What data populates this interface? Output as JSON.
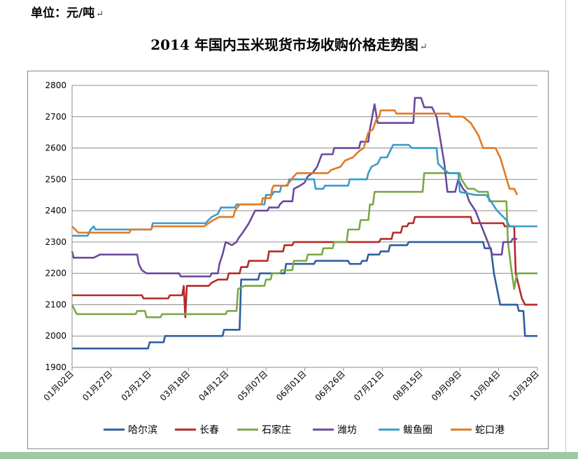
{
  "header": {
    "unit": "单位：元/吨",
    "mark": "↵"
  },
  "chart_data": {
    "type": "line",
    "title": "2014 年国内玉米现货市场收购价格走势图",
    "title_mark": "↵",
    "ylim": [
      1900,
      2800
    ],
    "yticks": [
      1900,
      2000,
      2100,
      2200,
      2300,
      2400,
      2500,
      2600,
      2700,
      2800
    ],
    "xlim": [
      0,
      300
    ],
    "xticks": [
      {
        "label": "01月02日",
        "x": 0
      },
      {
        "label": "01月27日",
        "x": 25
      },
      {
        "label": "02月21日",
        "x": 50
      },
      {
        "label": "03月18日",
        "x": 75
      },
      {
        "label": "04月12日",
        "x": 100
      },
      {
        "label": "05月07日",
        "x": 125
      },
      {
        "label": "06月01日",
        "x": 150
      },
      {
        "label": "06月26日",
        "x": 175
      },
      {
        "label": "07月21日",
        "x": 200
      },
      {
        "label": "08月15日",
        "x": 225
      },
      {
        "label": "09月09日",
        "x": 250
      },
      {
        "label": "10月04日",
        "x": 275
      },
      {
        "label": "10月29日",
        "x": 300
      }
    ],
    "grid": true,
    "legend_position": "bottom",
    "series": [
      {
        "name": "哈尔滨",
        "color": "#2e5f9e",
        "points": [
          [
            0,
            1960
          ],
          [
            49,
            1960
          ],
          [
            50,
            1980
          ],
          [
            59,
            1980
          ],
          [
            60,
            2000
          ],
          [
            97,
            2000
          ],
          [
            98,
            2020
          ],
          [
            108,
            2020
          ],
          [
            109,
            2180
          ],
          [
            120,
            2180
          ],
          [
            121,
            2200
          ],
          [
            137,
            2200
          ],
          [
            138,
            2230
          ],
          [
            156,
            2230
          ],
          [
            157,
            2240
          ],
          [
            178,
            2240
          ],
          [
            179,
            2230
          ],
          [
            186,
            2230
          ],
          [
            187,
            2240
          ],
          [
            190,
            2240
          ],
          [
            191,
            2260
          ],
          [
            198,
            2260
          ],
          [
            199,
            2270
          ],
          [
            204,
            2270
          ],
          [
            205,
            2290
          ],
          [
            216,
            2290
          ],
          [
            217,
            2300
          ],
          [
            265,
            2300
          ],
          [
            266,
            2280
          ],
          [
            270,
            2280
          ],
          [
            272,
            2200
          ],
          [
            276,
            2100
          ],
          [
            287,
            2100
          ],
          [
            288,
            2080
          ],
          [
            291,
            2080
          ],
          [
            292,
            2000
          ],
          [
            300,
            2000
          ]
        ]
      },
      {
        "name": "长春",
        "color": "#b52a26",
        "points": [
          [
            0,
            2130
          ],
          [
            45,
            2130
          ],
          [
            46,
            2120
          ],
          [
            62,
            2120
          ],
          [
            63,
            2130
          ],
          [
            71,
            2130
          ],
          [
            72,
            2160
          ],
          [
            73,
            2060
          ],
          [
            74,
            2160
          ],
          [
            88,
            2160
          ],
          [
            90,
            2170
          ],
          [
            94,
            2180
          ],
          [
            100,
            2180
          ],
          [
            101,
            2200
          ],
          [
            108,
            2200
          ],
          [
            109,
            2220
          ],
          [
            113,
            2220
          ],
          [
            114,
            2240
          ],
          [
            126,
            2240
          ],
          [
            127,
            2270
          ],
          [
            136,
            2270
          ],
          [
            137,
            2290
          ],
          [
            142,
            2290
          ],
          [
            143,
            2300
          ],
          [
            198,
            2300
          ],
          [
            199,
            2310
          ],
          [
            206,
            2310
          ],
          [
            207,
            2330
          ],
          [
            212,
            2330
          ],
          [
            213,
            2350
          ],
          [
            216,
            2350
          ],
          [
            217,
            2360
          ],
          [
            220,
            2360
          ],
          [
            221,
            2380
          ],
          [
            257,
            2380
          ],
          [
            258,
            2360
          ],
          [
            278,
            2360
          ],
          [
            279,
            2350
          ],
          [
            285,
            2350
          ],
          [
            286,
            2200
          ],
          [
            288,
            2160
          ],
          [
            290,
            2120
          ],
          [
            292,
            2100
          ],
          [
            300,
            2100
          ]
        ]
      },
      {
        "name": "石家庄",
        "color": "#7aa84a",
        "points": [
          [
            0,
            2100
          ],
          [
            2,
            2080
          ],
          [
            3,
            2070
          ],
          [
            41,
            2070
          ],
          [
            42,
            2080
          ],
          [
            47,
            2080
          ],
          [
            48,
            2060
          ],
          [
            57,
            2060
          ],
          [
            58,
            2070
          ],
          [
            99,
            2070
          ],
          [
            100,
            2080
          ],
          [
            106,
            2080
          ],
          [
            107,
            2150
          ],
          [
            111,
            2160
          ],
          [
            124,
            2160
          ],
          [
            125,
            2180
          ],
          [
            128,
            2180
          ],
          [
            129,
            2200
          ],
          [
            134,
            2200
          ],
          [
            135,
            2210
          ],
          [
            142,
            2210
          ],
          [
            143,
            2240
          ],
          [
            151,
            2240
          ],
          [
            152,
            2260
          ],
          [
            161,
            2260
          ],
          [
            162,
            2280
          ],
          [
            168,
            2280
          ],
          [
            169,
            2300
          ],
          [
            177,
            2300
          ],
          [
            178,
            2340
          ],
          [
            185,
            2340
          ],
          [
            186,
            2370
          ],
          [
            191,
            2370
          ],
          [
            192,
            2420
          ],
          [
            194,
            2420
          ],
          [
            195,
            2460
          ],
          [
            226,
            2460
          ],
          [
            227,
            2520
          ],
          [
            250,
            2520
          ],
          [
            251,
            2500
          ],
          [
            255,
            2470
          ],
          [
            259,
            2470
          ],
          [
            262,
            2460
          ],
          [
            268,
            2460
          ],
          [
            269,
            2430
          ],
          [
            280,
            2430
          ],
          [
            281,
            2300
          ],
          [
            283,
            2220
          ],
          [
            285,
            2150
          ],
          [
            286,
            2180
          ],
          [
            287,
            2200
          ],
          [
            300,
            2200
          ]
        ]
      },
      {
        "name": "潍坊",
        "color": "#6a4a9e",
        "points": [
          [
            0,
            2270
          ],
          [
            1,
            2250
          ],
          [
            14,
            2250
          ],
          [
            18,
            2260
          ],
          [
            42,
            2260
          ],
          [
            43,
            2230
          ],
          [
            45,
            2210
          ],
          [
            48,
            2200
          ],
          [
            69,
            2200
          ],
          [
            70,
            2190
          ],
          [
            83,
            2190
          ],
          [
            89,
            2190
          ],
          [
            90,
            2200
          ],
          [
            94,
            2200
          ],
          [
            95,
            2230
          ],
          [
            97,
            2260
          ],
          [
            99,
            2300
          ],
          [
            103,
            2290
          ],
          [
            106,
            2300
          ],
          [
            107,
            2310
          ],
          [
            110,
            2330
          ],
          [
            114,
            2360
          ],
          [
            116,
            2380
          ],
          [
            118,
            2400
          ],
          [
            126,
            2400
          ],
          [
            127,
            2410
          ],
          [
            133,
            2410
          ],
          [
            134,
            2420
          ],
          [
            136,
            2430
          ],
          [
            142,
            2430
          ],
          [
            143,
            2470
          ],
          [
            147,
            2480
          ],
          [
            150,
            2490
          ],
          [
            152,
            2510
          ],
          [
            155,
            2520
          ],
          [
            158,
            2540
          ],
          [
            161,
            2580
          ],
          [
            168,
            2580
          ],
          [
            169,
            2600
          ],
          [
            185,
            2600
          ],
          [
            186,
            2620
          ],
          [
            191,
            2620
          ],
          [
            192,
            2660
          ],
          [
            195,
            2740
          ],
          [
            197,
            2680
          ],
          [
            220,
            2680
          ],
          [
            221,
            2760
          ],
          [
            225,
            2760
          ],
          [
            227,
            2730
          ],
          [
            232,
            2730
          ],
          [
            235,
            2700
          ],
          [
            240,
            2550
          ],
          [
            242,
            2460
          ],
          [
            247,
            2460
          ],
          [
            249,
            2500
          ],
          [
            252,
            2470
          ],
          [
            254,
            2460
          ],
          [
            256,
            2430
          ],
          [
            260,
            2400
          ],
          [
            264,
            2350
          ],
          [
            268,
            2300
          ],
          [
            271,
            2260
          ],
          [
            277,
            2260
          ],
          [
            278,
            2300
          ],
          [
            283,
            2300
          ],
          [
            284,
            2310
          ],
          [
            287,
            2310
          ]
        ]
      },
      {
        "name": "鲅鱼圈",
        "color": "#3a9cc8",
        "points": [
          [
            0,
            2320
          ],
          [
            10,
            2320
          ],
          [
            12,
            2340
          ],
          [
            14,
            2350
          ],
          [
            15,
            2340
          ],
          [
            51,
            2340
          ],
          [
            52,
            2360
          ],
          [
            86,
            2360
          ],
          [
            90,
            2380
          ],
          [
            94,
            2390
          ],
          [
            96,
            2410
          ],
          [
            105,
            2410
          ],
          [
            106,
            2420
          ],
          [
            124,
            2420
          ],
          [
            125,
            2450
          ],
          [
            129,
            2450
          ],
          [
            130,
            2460
          ],
          [
            134,
            2460
          ],
          [
            135,
            2480
          ],
          [
            139,
            2480
          ],
          [
            140,
            2500
          ],
          [
            156,
            2500
          ],
          [
            157,
            2470
          ],
          [
            162,
            2470
          ],
          [
            163,
            2480
          ],
          [
            178,
            2480
          ],
          [
            179,
            2500
          ],
          [
            190,
            2500
          ],
          [
            191,
            2520
          ],
          [
            193,
            2540
          ],
          [
            197,
            2550
          ],
          [
            199,
            2570
          ],
          [
            203,
            2570
          ],
          [
            205,
            2590
          ],
          [
            207,
            2610
          ],
          [
            217,
            2610
          ],
          [
            219,
            2600
          ],
          [
            235,
            2600
          ],
          [
            236,
            2550
          ],
          [
            240,
            2530
          ],
          [
            243,
            2520
          ],
          [
            249,
            2520
          ],
          [
            250,
            2460
          ],
          [
            260,
            2450
          ],
          [
            267,
            2450
          ],
          [
            270,
            2430
          ],
          [
            274,
            2400
          ],
          [
            280,
            2370
          ],
          [
            282,
            2350
          ],
          [
            300,
            2350
          ]
        ]
      },
      {
        "name": "蛇口港",
        "color": "#e07a22",
        "points": [
          [
            0,
            2350
          ],
          [
            2,
            2340
          ],
          [
            4,
            2330
          ],
          [
            37,
            2330
          ],
          [
            38,
            2340
          ],
          [
            51,
            2340
          ],
          [
            52,
            2350
          ],
          [
            85,
            2350
          ],
          [
            88,
            2360
          ],
          [
            91,
            2370
          ],
          [
            95,
            2380
          ],
          [
            104,
            2380
          ],
          [
            105,
            2400
          ],
          [
            108,
            2420
          ],
          [
            122,
            2420
          ],
          [
            123,
            2440
          ],
          [
            128,
            2440
          ],
          [
            129,
            2470
          ],
          [
            130,
            2480
          ],
          [
            138,
            2480
          ],
          [
            140,
            2490
          ],
          [
            143,
            2510
          ],
          [
            145,
            2520
          ],
          [
            165,
            2520
          ],
          [
            167,
            2530
          ],
          [
            173,
            2540
          ],
          [
            176,
            2560
          ],
          [
            181,
            2570
          ],
          [
            185,
            2590
          ],
          [
            188,
            2600
          ],
          [
            191,
            2650
          ],
          [
            194,
            2660
          ],
          [
            196,
            2690
          ],
          [
            198,
            2700
          ],
          [
            199,
            2720
          ],
          [
            208,
            2720
          ],
          [
            209,
            2710
          ],
          [
            243,
            2710
          ],
          [
            244,
            2700
          ],
          [
            252,
            2700
          ],
          [
            257,
            2680
          ],
          [
            262,
            2640
          ],
          [
            265,
            2600
          ],
          [
            273,
            2600
          ],
          [
            276,
            2570
          ],
          [
            279,
            2520
          ],
          [
            282,
            2470
          ],
          [
            285,
            2470
          ],
          [
            286,
            2460
          ],
          [
            287,
            2450
          ]
        ]
      }
    ]
  }
}
